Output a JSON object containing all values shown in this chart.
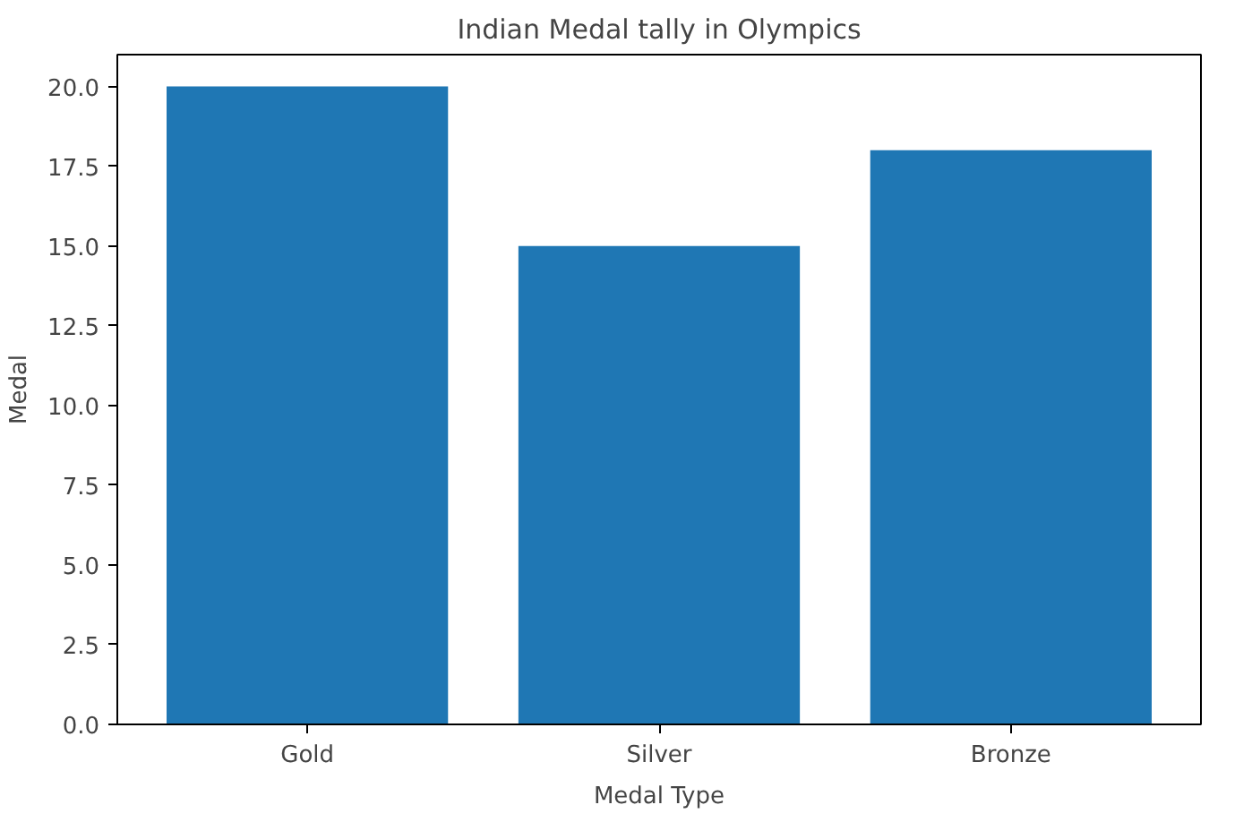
{
  "chart_data": {
    "type": "bar",
    "title": "Indian Medal tally in Olympics",
    "xlabel": "Medal Type",
    "ylabel": "Medal",
    "categories": [
      "Gold",
      "Silver",
      "Bronze"
    ],
    "values": [
      20,
      15,
      18
    ],
    "color": "#1f77b4",
    "ylim": [
      0,
      21
    ],
    "yticks": [
      {
        "value": 0,
        "label": "0.0"
      },
      {
        "value": 2.5,
        "label": "2.5"
      },
      {
        "value": 5,
        "label": "5.0"
      },
      {
        "value": 7.5,
        "label": "7.5"
      },
      {
        "value": 10,
        "label": "10.0"
      },
      {
        "value": 12.5,
        "label": "12.5"
      },
      {
        "value": 15,
        "label": "15.0"
      },
      {
        "value": 17.5,
        "label": "17.5"
      },
      {
        "value": 20,
        "label": "20.0"
      }
    ],
    "grid": false
  }
}
